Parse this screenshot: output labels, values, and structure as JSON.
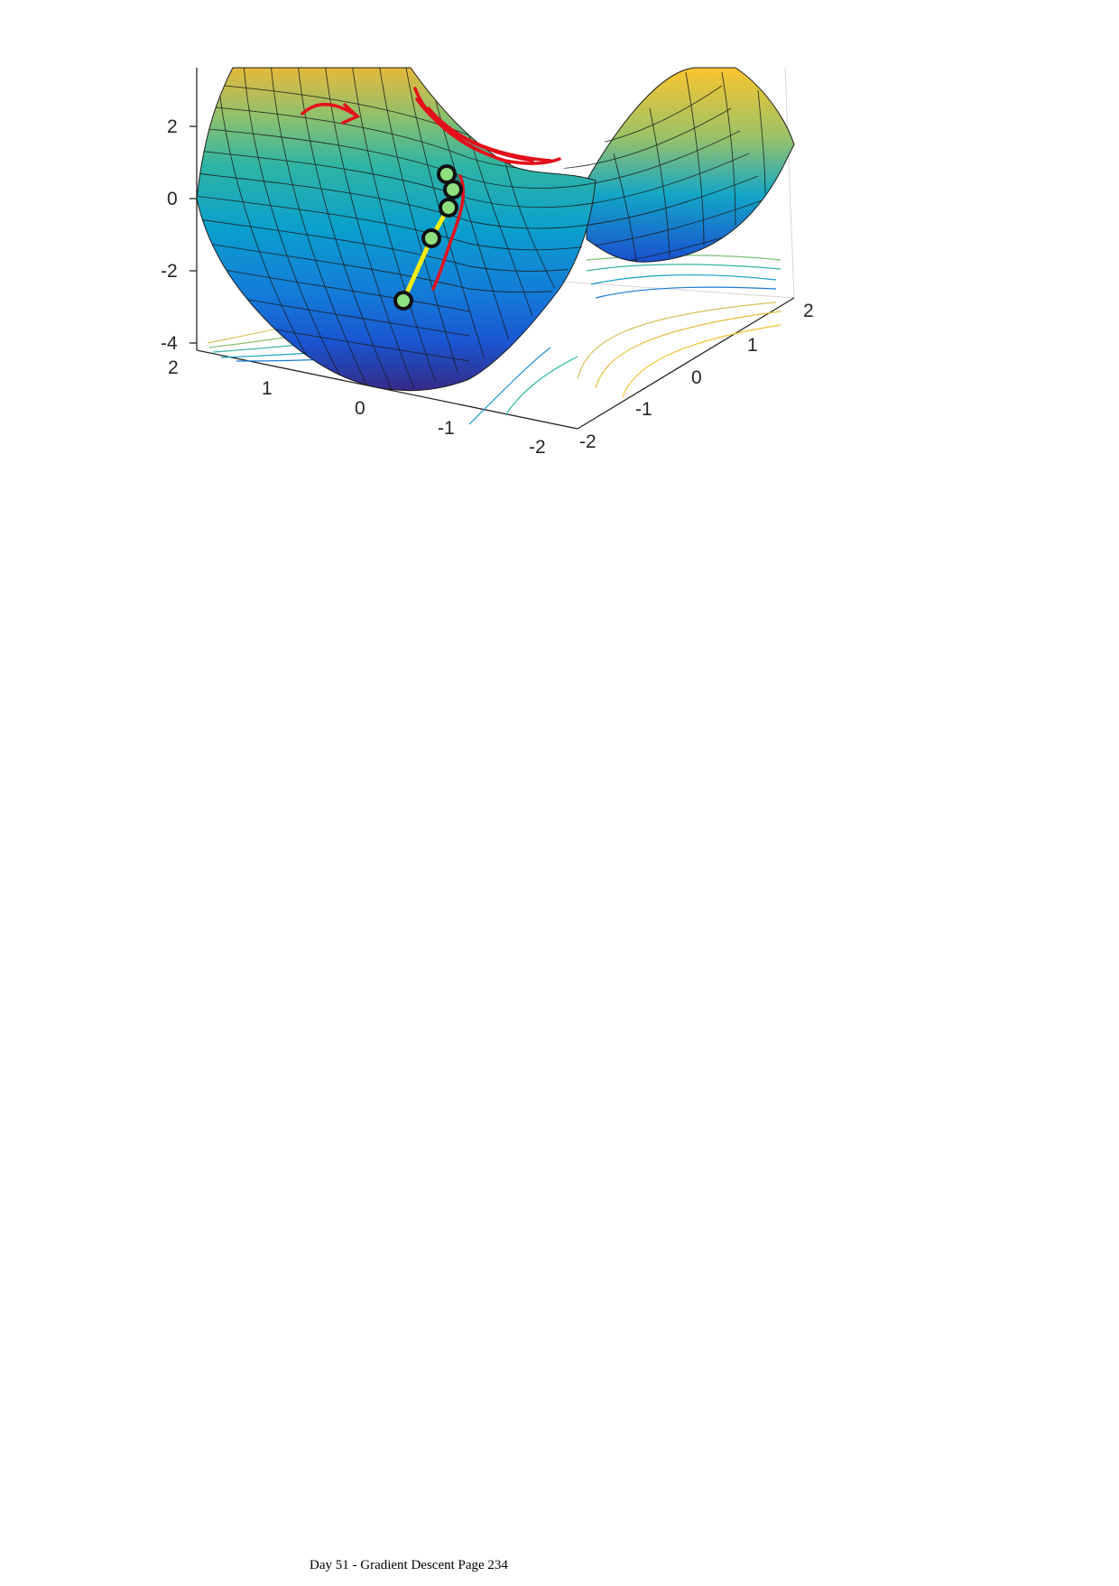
{
  "chart_data": {
    "type": "surface",
    "function": "z = x^2 - y^2 (saddle)",
    "title": "",
    "z_ticks": [
      "2",
      "0",
      "-2",
      "-4"
    ],
    "x_ticks": [
      "2",
      "1",
      "0",
      "-1",
      "-2"
    ],
    "y_ticks": [
      "2",
      "1",
      "0",
      "-1",
      "-2"
    ],
    "zlim": [
      -4,
      3.5
    ],
    "xlim": [
      -2,
      2
    ],
    "ylim": [
      -2,
      2
    ],
    "colormap": [
      "#352a87",
      "#0f5cdd",
      "#1481d6",
      "#06a4ca",
      "#2eb7a4",
      "#87bf77",
      "#d1bb59",
      "#fec832",
      "#f9fb0e"
    ],
    "descent_path": {
      "color": "#f5ec12",
      "points": [
        {
          "x": 0.55,
          "y": -0.15,
          "z": -2.9
        },
        {
          "x": 0.25,
          "y": -0.1,
          "z": -1.1
        },
        {
          "x": 0.1,
          "y": -0.05,
          "z": -0.2
        },
        {
          "x": 0.05,
          "y": -0.02,
          "z": 0.3
        },
        {
          "x": 0.02,
          "y": -0.01,
          "z": 0.7
        }
      ]
    },
    "annotation_color": "#e3101b"
  },
  "footer": {
    "text": "Day 51 - Gradient Descent Page 234"
  }
}
